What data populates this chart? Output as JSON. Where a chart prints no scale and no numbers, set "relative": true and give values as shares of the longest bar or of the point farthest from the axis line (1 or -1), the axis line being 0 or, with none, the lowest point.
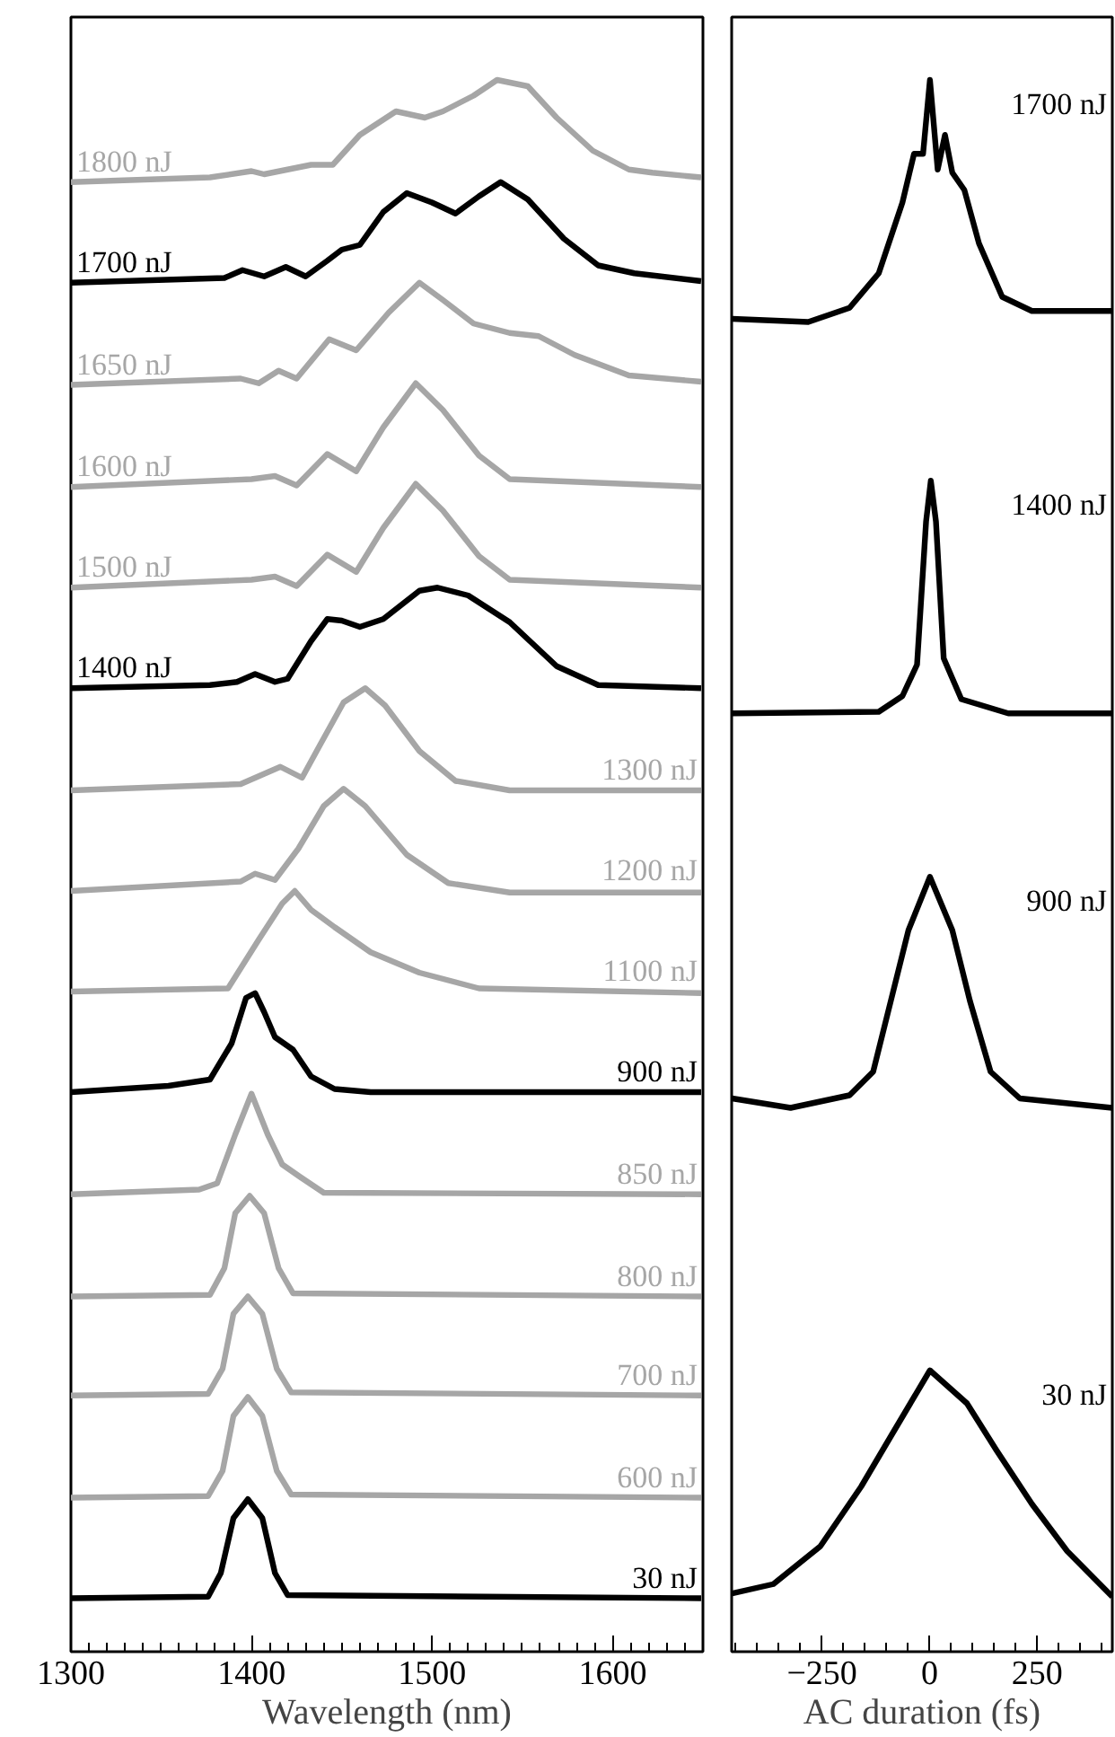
{
  "chart_data": [
    {
      "type": "line",
      "relative": true,
      "xlabel": "Wavelength (nm)",
      "xlim": [
        1300,
        1650
      ],
      "xticks": [
        1300,
        1400,
        1500,
        1600
      ],
      "tick_labels": "x",
      "grid": false,
      "series": [
        {
          "name": "1800 nJ",
          "color": "#a6a6a6",
          "x": [
            1300,
            1377,
            1400,
            1407,
            1433,
            1445,
            1460,
            1480,
            1496,
            1506,
            1523,
            1536,
            1553,
            1569,
            1589,
            1609,
            1622,
            1649
          ],
          "values": [
            0.935,
            0.938,
            0.942,
            0.94,
            0.946,
            0.946,
            0.965,
            0.98,
            0.976,
            0.98,
            0.99,
            1.0,
            0.996,
            0.976,
            0.955,
            0.943,
            0.941,
            0.938
          ]
        },
        {
          "name": "1700 nJ",
          "color": "#000000",
          "x": [
            1300,
            1385,
            1395,
            1407,
            1419,
            1430,
            1442,
            1450,
            1460,
            1473,
            1486,
            1500,
            1513,
            1526,
            1538,
            1553,
            1573,
            1592,
            1612,
            1649
          ],
          "values": [
            0.871,
            0.874,
            0.879,
            0.875,
            0.881,
            0.875,
            0.885,
            0.892,
            0.895,
            0.916,
            0.928,
            0.922,
            0.915,
            0.926,
            0.935,
            0.924,
            0.899,
            0.882,
            0.877,
            0.872
          ]
        },
        {
          "name": "1650 nJ",
          "color": "#a6a6a6",
          "x": [
            1300,
            1394,
            1404,
            1415,
            1425,
            1443,
            1458,
            1476,
            1493,
            1506,
            1523,
            1543,
            1559,
            1579,
            1609,
            1649
          ],
          "values": [
            0.806,
            0.81,
            0.807,
            0.815,
            0.81,
            0.835,
            0.828,
            0.852,
            0.871,
            0.86,
            0.845,
            0.839,
            0.837,
            0.825,
            0.812,
            0.808
          ]
        },
        {
          "name": "1600 nJ",
          "color": "#a6a6a6",
          "x": [
            1300,
            1400,
            1413,
            1425,
            1442,
            1458,
            1473,
            1491,
            1506,
            1526,
            1543,
            1649
          ],
          "values": [
            0.741,
            0.746,
            0.748,
            0.742,
            0.762,
            0.751,
            0.779,
            0.807,
            0.79,
            0.761,
            0.746,
            0.741
          ]
        },
        {
          "name": "1500 nJ",
          "color": "#a6a6a6",
          "x": [
            1300,
            1400,
            1413,
            1425,
            1442,
            1458,
            1473,
            1491,
            1506,
            1526,
            1543,
            1649
          ],
          "values": [
            0.677,
            0.682,
            0.684,
            0.678,
            0.698,
            0.687,
            0.715,
            0.743,
            0.726,
            0.697,
            0.682,
            0.677
          ]
        },
        {
          "name": "1400 nJ",
          "color": "#000000",
          "x": [
            1300,
            1377,
            1392,
            1402,
            1413,
            1420,
            1433,
            1442,
            1450,
            1460,
            1473,
            1493,
            1503,
            1520,
            1543,
            1569,
            1592,
            1649
          ],
          "values": [
            0.613,
            0.615,
            0.617,
            0.622,
            0.617,
            0.619,
            0.643,
            0.657,
            0.656,
            0.652,
            0.657,
            0.675,
            0.677,
            0.672,
            0.655,
            0.627,
            0.615,
            0.613
          ]
        },
        {
          "name": "1300 nJ",
          "color": "#a6a6a6",
          "x": [
            1300,
            1394,
            1416,
            1428,
            1438,
            1451,
            1463,
            1474,
            1493,
            1513,
            1543,
            1649
          ],
          "values": [
            0.548,
            0.552,
            0.563,
            0.556,
            0.577,
            0.604,
            0.613,
            0.602,
            0.573,
            0.554,
            0.548,
            0.548
          ]
        },
        {
          "name": "1200 nJ",
          "color": "#a6a6a6",
          "x": [
            1300,
            1394,
            1402,
            1413,
            1426,
            1440,
            1451,
            1463,
            1486,
            1509,
            1543,
            1649
          ],
          "values": [
            0.484,
            0.49,
            0.495,
            0.491,
            0.511,
            0.538,
            0.549,
            0.538,
            0.507,
            0.489,
            0.483,
            0.483
          ]
        },
        {
          "name": "1100 nJ",
          "color": "#a6a6a6",
          "x": [
            1300,
            1387,
            1404,
            1417,
            1424,
            1433,
            1446,
            1466,
            1493,
            1526,
            1649
          ],
          "values": [
            0.42,
            0.422,
            0.453,
            0.476,
            0.484,
            0.472,
            0.461,
            0.445,
            0.432,
            0.422,
            0.419
          ]
        },
        {
          "name": "900 nJ",
          "color": "#000000",
          "x": [
            1300,
            1354,
            1377,
            1389,
            1397,
            1402,
            1407,
            1413,
            1423,
            1433,
            1446,
            1466,
            1649
          ],
          "values": [
            0.356,
            0.36,
            0.364,
            0.387,
            0.416,
            0.419,
            0.407,
            0.391,
            0.383,
            0.366,
            0.358,
            0.356,
            0.356
          ]
        },
        {
          "name": "850 nJ",
          "color": "#a6a6a6",
          "x": [
            1300,
            1371,
            1381,
            1391,
            1400,
            1409,
            1417,
            1427,
            1440,
            1649
          ],
          "values": [
            0.291,
            0.294,
            0.298,
            0.329,
            0.355,
            0.329,
            0.31,
            0.302,
            0.292,
            0.291
          ]
        },
        {
          "name": "800 nJ",
          "color": "#a6a6a6",
          "x": [
            1300,
            1377,
            1385,
            1391,
            1399,
            1407,
            1415,
            1423,
            1649
          ],
          "values": [
            0.226,
            0.227,
            0.244,
            0.279,
            0.29,
            0.279,
            0.244,
            0.228,
            0.226
          ]
        },
        {
          "name": "700 nJ",
          "color": "#a6a6a6",
          "x": [
            1300,
            1376,
            1384,
            1390,
            1398,
            1406,
            1414,
            1422,
            1649
          ],
          "values": [
            0.163,
            0.164,
            0.18,
            0.215,
            0.226,
            0.215,
            0.18,
            0.165,
            0.163
          ]
        },
        {
          "name": "600 nJ",
          "color": "#a6a6a6",
          "x": [
            1300,
            1376,
            1384,
            1390,
            1398,
            1406,
            1414,
            1422,
            1649
          ],
          "values": [
            0.098,
            0.099,
            0.115,
            0.15,
            0.162,
            0.15,
            0.115,
            0.1,
            0.098
          ]
        },
        {
          "name": "30 nJ",
          "color": "#000000",
          "x": [
            1300,
            1376,
            1383,
            1390,
            1398,
            1406,
            1413,
            1420,
            1649
          ],
          "values": [
            0.034,
            0.035,
            0.05,
            0.085,
            0.097,
            0.085,
            0.05,
            0.036,
            0.034
          ]
        }
      ]
    },
    {
      "type": "line",
      "relative": true,
      "xlabel": "AC duration (fs)",
      "xlim": [
        -460,
        425
      ],
      "xticks": [
        {
          "value": -250,
          "label": "−250"
        },
        0,
        250
      ],
      "tick_labels": "x",
      "grid": false,
      "series": [
        {
          "name": "1700 nJ",
          "color": "#000000",
          "x": [
            -459,
            -282,
            -186,
            -118,
            -63,
            -36,
            -15,
            1,
            19,
            36,
            53,
            81,
            115,
            169,
            238,
            425
          ],
          "values": [
            0.848,
            0.846,
            0.855,
            0.877,
            0.922,
            0.953,
            0.953,
            1.0,
            0.943,
            0.965,
            0.941,
            0.93,
            0.896,
            0.862,
            0.853,
            0.853
          ]
        },
        {
          "name": "1400 nJ",
          "color": "#000000",
          "x": [
            -459,
            -118,
            -63,
            -29,
            -8,
            3,
            15,
            33,
            74,
            183,
            425
          ],
          "values": [
            0.597,
            0.598,
            0.608,
            0.628,
            0.719,
            0.745,
            0.719,
            0.632,
            0.606,
            0.597,
            0.597
          ]
        },
        {
          "name": "900 nJ",
          "color": "#000000",
          "x": [
            -459,
            -323,
            -186,
            -131,
            -90,
            -49,
            1,
            53,
            94,
            142,
            210,
            425
          ],
          "values": [
            0.352,
            0.346,
            0.354,
            0.369,
            0.414,
            0.459,
            0.493,
            0.459,
            0.414,
            0.369,
            0.352,
            0.346
          ]
        },
        {
          "name": "30 nJ",
          "color": "#000000",
          "x": [
            -459,
            -363,
            -254,
            -159,
            -90,
            1,
            87,
            156,
            238,
            320,
            425
          ],
          "values": [
            0.037,
            0.043,
            0.067,
            0.105,
            0.137,
            0.179,
            0.158,
            0.128,
            0.094,
            0.064,
            0.035
          ]
        }
      ]
    }
  ]
}
